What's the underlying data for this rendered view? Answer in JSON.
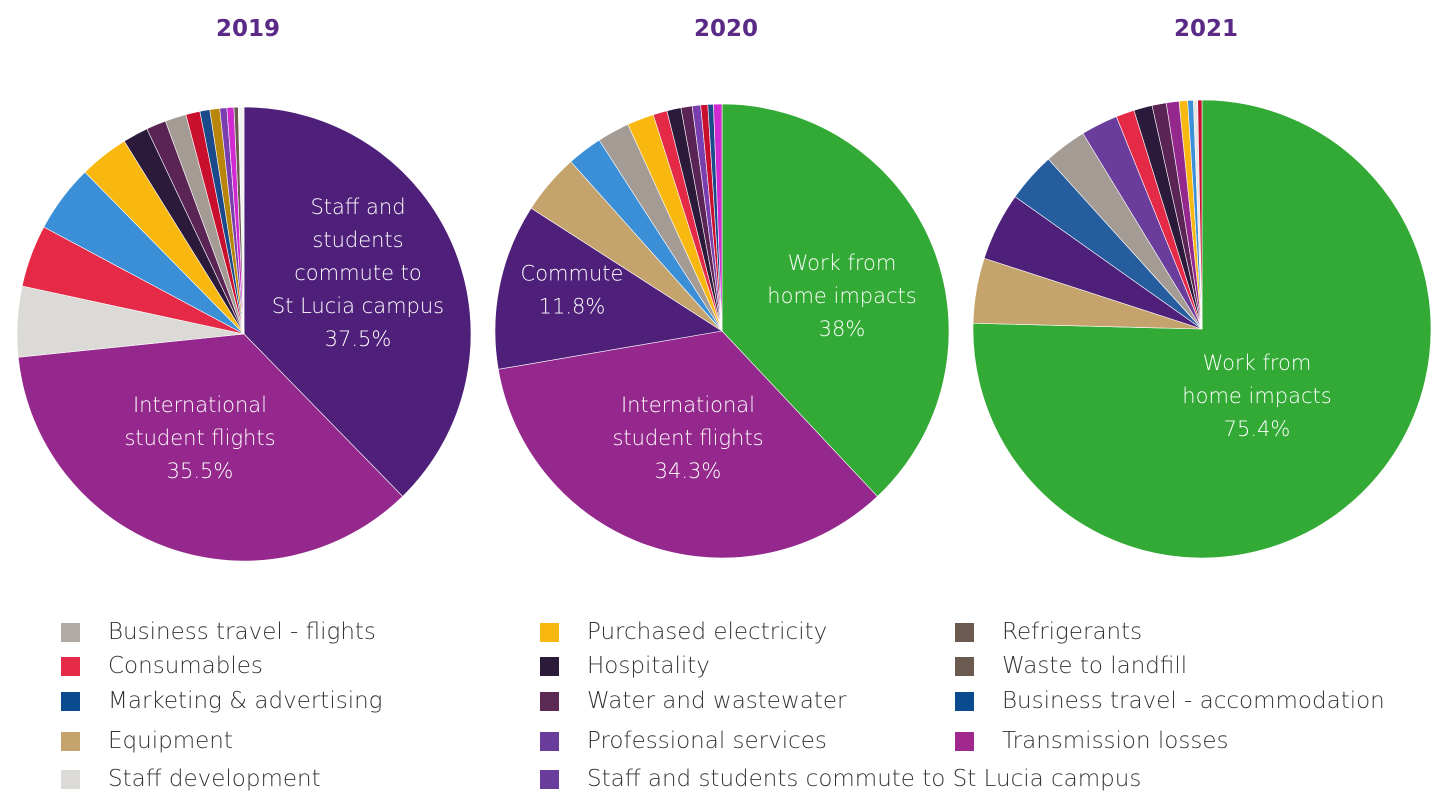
{
  "chart_data": [
    {
      "type": "pie",
      "title": "2019",
      "slices": [
        {
          "name": "Staff and students commute to St Lucia campus",
          "value": 37.5,
          "color": "#4e207a",
          "label_lines": [
            "Staff and",
            "students",
            "commute to",
            "St Lucia campus",
            "37.5%"
          ]
        },
        {
          "name": "International student flights",
          "value": 35.5,
          "color": "#94288c",
          "label_lines": [
            "International",
            "student flights",
            "35.5%"
          ]
        },
        {
          "name": "Staff development",
          "value": 5.0,
          "color": "#dcdad6"
        },
        {
          "name": "Consumables",
          "value": 4.4,
          "color": "#e52a47"
        },
        {
          "name": "Marketing & advertising",
          "value": 4.8,
          "color": "#3b8fd6"
        },
        {
          "name": "Purchased electricity",
          "value": 3.5,
          "color": "#f8b80f"
        },
        {
          "name": "Hospitality",
          "value": 1.8,
          "color": "#2b1a3a"
        },
        {
          "name": "Water and wastewater",
          "value": 1.4,
          "color": "#5a2555"
        },
        {
          "name": "Business travel - flights",
          "value": 1.5,
          "color": "#a49b94"
        },
        {
          "name": "Consumables",
          "value": 1.0,
          "color": "#c8102e"
        },
        {
          "name": "Business travel - accommodation",
          "value": 0.7,
          "color": "#1a4a8a"
        },
        {
          "name": "Equipment",
          "value": 0.7,
          "color": "#b8860b"
        },
        {
          "name": "Professional services",
          "value": 0.5,
          "color": "#7a3fae"
        },
        {
          "name": "Transmission losses",
          "value": 0.5,
          "color": "#d02ad0"
        },
        {
          "name": "Refrigerants",
          "value": 0.3,
          "color": "#6b5a50"
        },
        {
          "name": "Waste to landfill",
          "value": 0.4,
          "color": "#f2f2f2"
        }
      ]
    },
    {
      "type": "pie",
      "title": "2020",
      "slices": [
        {
          "name": "Work from home impacts",
          "value": 38,
          "color": "#33aa35",
          "label_lines": [
            "Work from",
            "home impacts",
            "38%"
          ]
        },
        {
          "name": "International student flights",
          "value": 34.3,
          "color": "#94288c",
          "label_lines": [
            "International",
            "student flights",
            "34.3%"
          ]
        },
        {
          "name": "Commute",
          "value": 11.8,
          "color": "#4e207a",
          "label_lines": [
            "Commute",
            "11.8%"
          ]
        },
        {
          "name": "Equipment",
          "value": 4.3,
          "color": "#c4a46c"
        },
        {
          "name": "Marketing & advertising",
          "value": 2.5,
          "color": "#3b8fd6"
        },
        {
          "name": "Business travel - flights",
          "value": 2.3,
          "color": "#a49b94"
        },
        {
          "name": "Purchased electricity",
          "value": 1.9,
          "color": "#f8b80f"
        },
        {
          "name": "Consumables",
          "value": 1.0,
          "color": "#e52a47"
        },
        {
          "name": "Hospitality",
          "value": 1.0,
          "color": "#2b1a3a"
        },
        {
          "name": "Water and wastewater",
          "value": 0.8,
          "color": "#5a2555"
        },
        {
          "name": "Professional services",
          "value": 0.6,
          "color": "#7a3fae"
        },
        {
          "name": "Consumables",
          "value": 0.5,
          "color": "#c8102e"
        },
        {
          "name": "Business travel - accommodation",
          "value": 0.4,
          "color": "#1a4a8a"
        },
        {
          "name": "Transmission losses",
          "value": 0.6,
          "color": "#d02ad0"
        }
      ]
    },
    {
      "type": "pie",
      "title": "2021",
      "slices": [
        {
          "name": "Work from home impacts",
          "value": 75.4,
          "color": "#33aa35",
          "label_lines": [
            "Work from",
            "home impacts",
            "75.4%"
          ]
        },
        {
          "name": "Equipment",
          "value": 4.6,
          "color": "#c4a46c"
        },
        {
          "name": "Staff and students commute to St Lucia campus",
          "value": 4.8,
          "color": "#4e207a"
        },
        {
          "name": "Business travel - accommodation",
          "value": 3.5,
          "color": "#255d9e"
        },
        {
          "name": "Business travel - flights",
          "value": 3.0,
          "color": "#a49b94"
        },
        {
          "name": "Professional services",
          "value": 2.6,
          "color": "#6a3c9c"
        },
        {
          "name": "Consumables",
          "value": 1.3,
          "color": "#e52a47"
        },
        {
          "name": "Hospitality",
          "value": 1.3,
          "color": "#2b1a3a"
        },
        {
          "name": "Water and wastewater",
          "value": 1.0,
          "color": "#5a2555"
        },
        {
          "name": "Transmission losses",
          "value": 0.9,
          "color": "#94288c"
        },
        {
          "name": "Purchased electricity",
          "value": 0.6,
          "color": "#f8b80f"
        },
        {
          "name": "Marketing & advertising",
          "value": 0.4,
          "color": "#3b8fd6"
        },
        {
          "name": "Waste to landfill",
          "value": 0.3,
          "color": "#e8e6e2"
        },
        {
          "name": "Consumables",
          "value": 0.3,
          "color": "#c8102e"
        }
      ]
    }
  ],
  "legend": [
    {
      "label": "Business travel - flights",
      "color": "#b0aaa5"
    },
    {
      "label": "Consumables",
      "color": "#e52a47"
    },
    {
      "label": "Marketing & advertising",
      "color": "#0a4a8f"
    },
    {
      "label": "Equipment",
      "color": "#c4a46c"
    },
    {
      "label": "Staff development",
      "color": "#dcdad6"
    },
    {
      "label": "Purchased electricity",
      "color": "#f8b80f"
    },
    {
      "label": "Hospitality",
      "color": "#2b1a3a"
    },
    {
      "label": "Water and wastewater",
      "color": "#5a2a55"
    },
    {
      "label": "Professional services",
      "color": "#6a3c9c"
    },
    {
      "label": "Staff and students commute to St Lucia campus",
      "color": "#6a3c9c"
    },
    {
      "label": "Refrigerants",
      "color": "#6b5a50"
    },
    {
      "label": "Waste to landfill",
      "color": "#6b5a50"
    },
    {
      "label": "Business travel - accommodation",
      "color": "#0a4a8f"
    },
    {
      "label": "Transmission losses",
      "color": "#a0288c"
    }
  ]
}
